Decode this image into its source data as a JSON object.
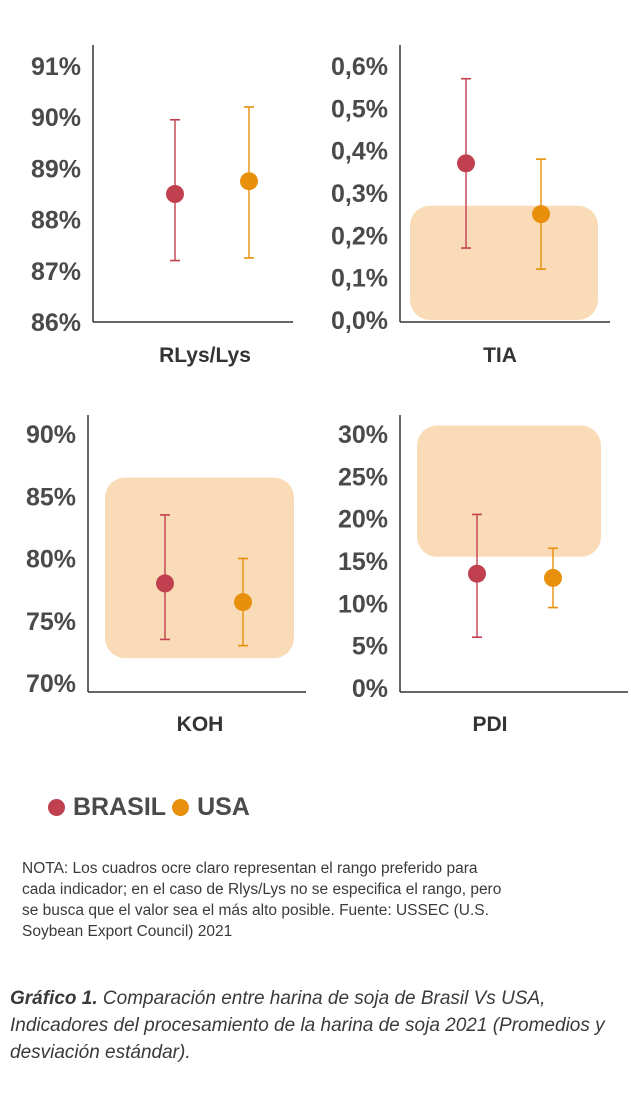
{
  "chart_data": [
    {
      "type": "scatter",
      "subtype": "error-bar",
      "xlabel": "RLys/Lys",
      "ylim": [
        86,
        91
      ],
      "ticks": [
        86,
        87,
        88,
        89,
        90,
        91
      ],
      "tick_labels": [
        "86%",
        "87%",
        "88%",
        "89%",
        "90%",
        "91%"
      ],
      "series": [
        {
          "name": "BRASIL",
          "mean": 88.5,
          "low": 87.2,
          "high": 89.95
        },
        {
          "name": "USA",
          "mean": 88.75,
          "low": 87.25,
          "high": 90.2
        }
      ],
      "preferred_range": null
    },
    {
      "type": "scatter",
      "subtype": "error-bar",
      "xlabel": "TIA",
      "ylim": [
        0,
        0.6
      ],
      "ticks": [
        0,
        0.1,
        0.2,
        0.3,
        0.4,
        0.5,
        0.6
      ],
      "tick_labels": [
        "0,0%",
        "0,1%",
        "0,2%",
        "0,3%",
        "0,4%",
        "0,5%",
        "0,6%"
      ],
      "series": [
        {
          "name": "BRASIL",
          "mean": 0.37,
          "low": 0.17,
          "high": 0.57
        },
        {
          "name": "USA",
          "mean": 0.25,
          "low": 0.12,
          "high": 0.38
        }
      ],
      "preferred_range": [
        0,
        0.27
      ]
    },
    {
      "type": "scatter",
      "subtype": "error-bar",
      "xlabel": "KOH",
      "ylim": [
        70,
        90
      ],
      "ticks": [
        70,
        75,
        80,
        85,
        90
      ],
      "tick_labels": [
        "70%",
        "75%",
        "80%",
        "85%",
        "90%"
      ],
      "series": [
        {
          "name": "BRASIL",
          "mean": 78.0,
          "low": 73.5,
          "high": 83.5
        },
        {
          "name": "USA",
          "mean": 76.5,
          "low": 73.0,
          "high": 80.0
        }
      ],
      "preferred_range": [
        72,
        86.5
      ]
    },
    {
      "type": "scatter",
      "subtype": "error-bar",
      "xlabel": "PDI",
      "ylim": [
        0,
        30
      ],
      "ticks": [
        0,
        5,
        10,
        15,
        20,
        25,
        30
      ],
      "tick_labels": [
        "0%",
        "5%",
        "10%",
        "15%",
        "20%",
        "25%",
        "30%"
      ],
      "series": [
        {
          "name": "BRASIL",
          "mean": 13.5,
          "low": 6.0,
          "high": 20.5
        },
        {
          "name": "USA",
          "mean": 13.0,
          "low": 9.5,
          "high": 16.5
        }
      ],
      "preferred_range": [
        15.5,
        31
      ]
    }
  ],
  "colors": {
    "brasil": "#c0404f",
    "usa": "#e8900c",
    "range_box": "#f9dbb8",
    "axis": "#333333"
  },
  "legend": {
    "brasil_label": "BRASIL",
    "usa_label": "USA"
  },
  "note": "NOTA: Los cuadros ocre claro representan el rango preferido para\ncada indicador; en el caso de Rlys/Lys no se especifica el rango, pero\nse busca que el valor sea el más alto posible. Fuente: USSEC (U.S.\nSoybean Export Council) 2021",
  "caption": {
    "bold": "Gráfico 1.",
    "text": " Comparación entre harina de soja de Brasil Vs USA, Indicadores del procesamiento de la harina de soja 2021 (Promedios y desviación estándar)."
  }
}
